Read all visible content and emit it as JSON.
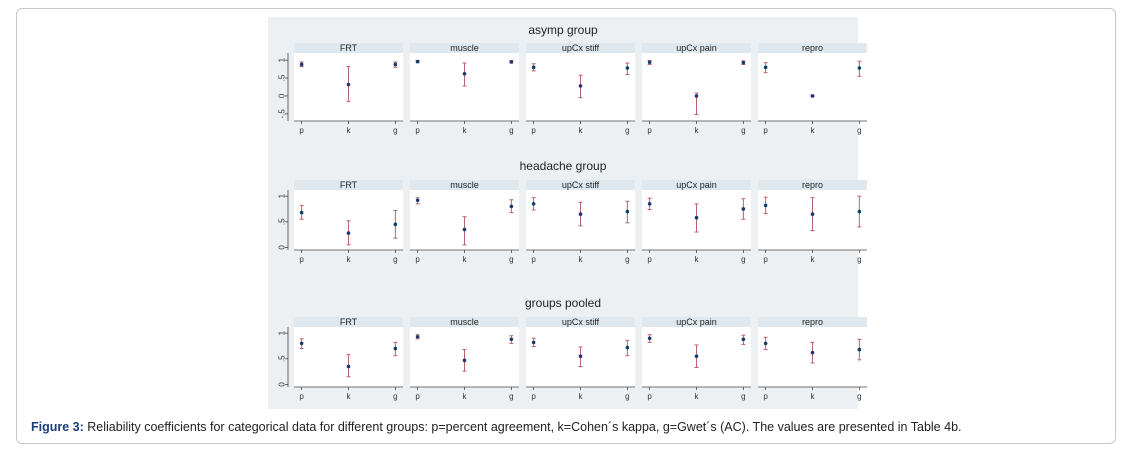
{
  "caption": {
    "label": "Figure 3:",
    "text": " Reliability coefficients for categorical data for different groups: p=percent agreement, k=Cohen´s kappa, g=Gwet´s (AC). The values are presented in Table 4b."
  },
  "colors": {
    "ci": "#b8646e",
    "point": "#1a3a6b",
    "strip": "#dfe8ee",
    "panel": "#ffffff",
    "background": "#ecf0f3"
  },
  "chart_data": [
    {
      "type": "scatter",
      "title": "asymp group",
      "x_categories": [
        "p",
        "k",
        "g"
      ],
      "y_ticks": [
        "-.5",
        "0",
        ".5",
        "1"
      ],
      "ylim": [
        -0.7,
        1.2
      ],
      "panels": [
        {
          "name": "FRT",
          "points": [
            {
              "x": "p",
              "y": 0.88,
              "low": 0.82,
              "high": 0.95
            },
            {
              "x": "k",
              "y": 0.32,
              "low": -0.15,
              "high": 0.82
            },
            {
              "x": "g",
              "y": 0.88,
              "low": 0.8,
              "high": 0.95
            }
          ]
        },
        {
          "name": "muscle",
          "points": [
            {
              "x": "p",
              "y": 0.96,
              "low": 0.93,
              "high": 0.99
            },
            {
              "x": "k",
              "y": 0.62,
              "low": 0.28,
              "high": 0.92
            },
            {
              "x": "g",
              "y": 0.95,
              "low": 0.92,
              "high": 0.99
            }
          ]
        },
        {
          "name": "upCx stiff",
          "points": [
            {
              "x": "p",
              "y": 0.8,
              "low": 0.7,
              "high": 0.9
            },
            {
              "x": "k",
              "y": 0.28,
              "low": -0.05,
              "high": 0.58
            },
            {
              "x": "g",
              "y": 0.78,
              "low": 0.6,
              "high": 0.92
            }
          ]
        },
        {
          "name": "upCx pain",
          "points": [
            {
              "x": "p",
              "y": 0.94,
              "low": 0.88,
              "high": 0.99
            },
            {
              "x": "k",
              "y": 0.0,
              "low": -0.52,
              "high": 0.08
            },
            {
              "x": "g",
              "y": 0.93,
              "low": 0.88,
              "high": 0.98
            }
          ]
        },
        {
          "name": "repro",
          "points": [
            {
              "x": "p",
              "y": 0.8,
              "low": 0.65,
              "high": 0.93
            },
            {
              "x": "k",
              "y": 0.0,
              "low": -0.02,
              "high": 0.02
            },
            {
              "x": "g",
              "y": 0.78,
              "low": 0.55,
              "high": 0.97
            }
          ]
        }
      ]
    },
    {
      "type": "scatter",
      "title": "headache group",
      "x_categories": [
        "p",
        "k",
        "g"
      ],
      "y_ticks": [
        "0",
        ".5",
        "1"
      ],
      "ylim": [
        -0.05,
        1.12
      ],
      "panels": [
        {
          "name": "FRT",
          "points": [
            {
              "x": "p",
              "y": 0.68,
              "low": 0.55,
              "high": 0.82
            },
            {
              "x": "k",
              "y": 0.28,
              "low": 0.05,
              "high": 0.52
            },
            {
              "x": "g",
              "y": 0.45,
              "low": 0.18,
              "high": 0.72
            }
          ]
        },
        {
          "name": "muscle",
          "points": [
            {
              "x": "p",
              "y": 0.92,
              "low": 0.85,
              "high": 0.97
            },
            {
              "x": "k",
              "y": 0.35,
              "low": 0.05,
              "high": 0.6
            },
            {
              "x": "g",
              "y": 0.8,
              "low": 0.68,
              "high": 0.93
            }
          ]
        },
        {
          "name": "upCx stiff",
          "points": [
            {
              "x": "p",
              "y": 0.85,
              "low": 0.73,
              "high": 0.97
            },
            {
              "x": "k",
              "y": 0.65,
              "low": 0.42,
              "high": 0.88
            },
            {
              "x": "g",
              "y": 0.7,
              "low": 0.48,
              "high": 0.9
            }
          ]
        },
        {
          "name": "upCx pain",
          "points": [
            {
              "x": "p",
              "y": 0.85,
              "low": 0.74,
              "high": 0.96
            },
            {
              "x": "k",
              "y": 0.58,
              "low": 0.3,
              "high": 0.85
            },
            {
              "x": "g",
              "y": 0.75,
              "low": 0.55,
              "high": 0.95
            }
          ]
        },
        {
          "name": "repro",
          "points": [
            {
              "x": "p",
              "y": 0.82,
              "low": 0.66,
              "high": 0.98
            },
            {
              "x": "k",
              "y": 0.65,
              "low": 0.33,
              "high": 0.97
            },
            {
              "x": "g",
              "y": 0.7,
              "low": 0.4,
              "high": 1.0
            }
          ]
        }
      ]
    },
    {
      "type": "scatter",
      "title": "groups pooled",
      "x_categories": [
        "p",
        "k",
        "g"
      ],
      "y_ticks": [
        "0",
        ".5",
        "1"
      ],
      "ylim": [
        -0.05,
        1.12
      ],
      "panels": [
        {
          "name": "FRT",
          "points": [
            {
              "x": "p",
              "y": 0.8,
              "low": 0.7,
              "high": 0.89
            },
            {
              "x": "k",
              "y": 0.35,
              "low": 0.15,
              "high": 0.58
            },
            {
              "x": "g",
              "y": 0.7,
              "low": 0.56,
              "high": 0.82
            }
          ]
        },
        {
          "name": "muscle",
          "points": [
            {
              "x": "p",
              "y": 0.93,
              "low": 0.89,
              "high": 0.97
            },
            {
              "x": "k",
              "y": 0.47,
              "low": 0.26,
              "high": 0.68
            },
            {
              "x": "g",
              "y": 0.88,
              "low": 0.8,
              "high": 0.95
            }
          ]
        },
        {
          "name": "upCx stiff",
          "points": [
            {
              "x": "p",
              "y": 0.82,
              "low": 0.74,
              "high": 0.9
            },
            {
              "x": "k",
              "y": 0.55,
              "low": 0.35,
              "high": 0.73
            },
            {
              "x": "g",
              "y": 0.72,
              "low": 0.56,
              "high": 0.86
            }
          ]
        },
        {
          "name": "upCx pain",
          "points": [
            {
              "x": "p",
              "y": 0.9,
              "low": 0.82,
              "high": 0.97
            },
            {
              "x": "k",
              "y": 0.55,
              "low": 0.33,
              "high": 0.77
            },
            {
              "x": "g",
              "y": 0.88,
              "low": 0.78,
              "high": 0.96
            }
          ]
        },
        {
          "name": "repro",
          "points": [
            {
              "x": "p",
              "y": 0.8,
              "low": 0.68,
              "high": 0.92
            },
            {
              "x": "k",
              "y": 0.62,
              "low": 0.42,
              "high": 0.82
            },
            {
              "x": "g",
              "y": 0.68,
              "low": 0.48,
              "high": 0.88
            }
          ]
        }
      ]
    }
  ]
}
